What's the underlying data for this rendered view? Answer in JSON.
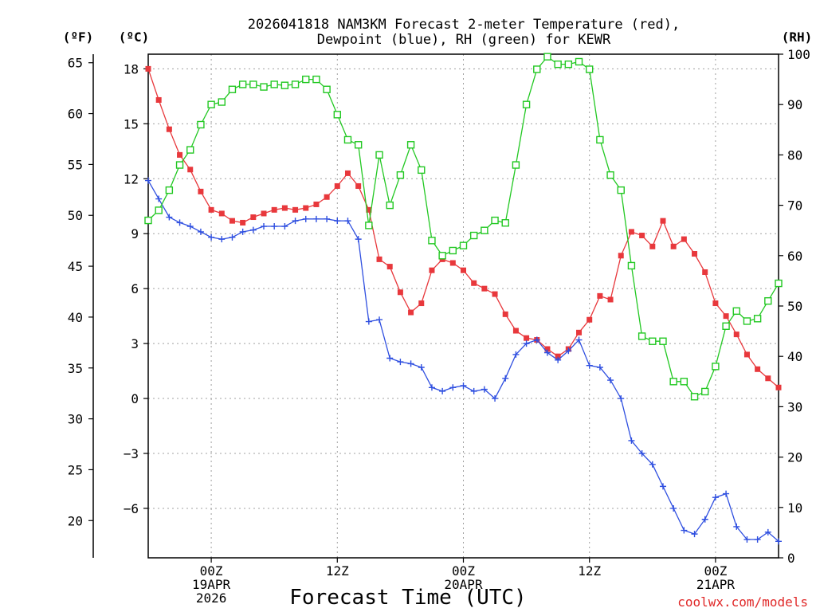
{
  "chart_data": {
    "type": "line",
    "title_line1": "2026041818 NAM3KM Forecast 2-meter Temperature (red),",
    "title_line2": "Dewpoint (blue), RH (green) for KEWR",
    "xlabel": "Forecast Time (UTC)",
    "credit": "coolwx.com/models",
    "left_f_label": "(ºF)",
    "left_c_label": "(ºC)",
    "right_label": "(RH)",
    "x_unit": "forecast hour",
    "xlim": [
      0,
      60
    ],
    "x_ticks": [
      {
        "x": 6,
        "lines": [
          "00Z",
          "19APR",
          "2026"
        ]
      },
      {
        "x": 18,
        "lines": [
          "12Z"
        ]
      },
      {
        "x": 30,
        "lines": [
          "00Z",
          "20APR"
        ]
      },
      {
        "x": 42,
        "lines": [
          "12Z"
        ]
      },
      {
        "x": 54,
        "lines": [
          "00Z",
          "21APR"
        ]
      }
    ],
    "y_c_range": [
      -8.7,
      18.8
    ],
    "y_c_ticks": [
      18,
      15,
      12,
      9,
      6,
      3,
      0,
      -3,
      -6
    ],
    "y_f_ticks": [
      65,
      60,
      55,
      50,
      45,
      40,
      35,
      30,
      25,
      20
    ],
    "y_rh_range": [
      0,
      100
    ],
    "y_rh_ticks": [
      100,
      90,
      80,
      70,
      60,
      50,
      40,
      30,
      20,
      10,
      0
    ],
    "colors": {
      "temperature": "#e8383c",
      "dewpoint": "#2f4fe0",
      "rh": "#22c822",
      "grid": "#a0a0a0",
      "credit": "#e02828"
    },
    "x": [
      0,
      1,
      2,
      3,
      4,
      5,
      6,
      7,
      8,
      9,
      10,
      11,
      12,
      13,
      14,
      15,
      16,
      17,
      18,
      19,
      20,
      21,
      22,
      23,
      24,
      25,
      26,
      27,
      28,
      29,
      30,
      31,
      32,
      33,
      34,
      35,
      36,
      37,
      38,
      39,
      40,
      41,
      42,
      43,
      44,
      45,
      46,
      47,
      48,
      49,
      50,
      51,
      52,
      53,
      54,
      55,
      56,
      57,
      58,
      59,
      60
    ],
    "series": [
      {
        "name": "Temperature",
        "axis": "celsius",
        "marker": "filled-square",
        "color": "#e8383c",
        "values": [
          18.0,
          16.3,
          14.7,
          13.3,
          12.5,
          11.3,
          10.3,
          10.1,
          9.7,
          9.6,
          9.9,
          10.1,
          10.3,
          10.4,
          10.3,
          10.4,
          10.6,
          11.0,
          11.6,
          12.3,
          11.6,
          10.3,
          7.6,
          7.2,
          5.8,
          4.7,
          5.2,
          7.0,
          7.6,
          7.4,
          7.0,
          6.3,
          6.0,
          5.7,
          4.6,
          3.7,
          3.3,
          3.2,
          2.7,
          2.3,
          2.7,
          3.6,
          4.3,
          5.6,
          5.4,
          7.8,
          9.1,
          8.9,
          8.3,
          9.7,
          8.3,
          8.7,
          7.9,
          6.9,
          5.2,
          4.5,
          3.5,
          2.4,
          1.6,
          1.1,
          0.6
        ]
      },
      {
        "name": "Dewpoint",
        "axis": "celsius",
        "marker": "plus",
        "color": "#2f4fe0",
        "values": [
          11.9,
          10.9,
          9.9,
          9.6,
          9.4,
          9.1,
          8.8,
          8.7,
          8.8,
          9.1,
          9.2,
          9.4,
          9.4,
          9.4,
          9.7,
          9.8,
          9.8,
          9.8,
          9.7,
          9.7,
          8.7,
          4.2,
          4.3,
          2.2,
          2.0,
          1.9,
          1.7,
          0.6,
          0.4,
          0.6,
          0.7,
          0.4,
          0.5,
          0.0,
          1.1,
          2.4,
          3.0,
          3.2,
          2.5,
          2.1,
          2.6,
          3.2,
          1.8,
          1.7,
          1.0,
          0.0,
          -2.3,
          -3.0,
          -3.6,
          -4.8,
          -6.0,
          -7.2,
          -7.4,
          -6.6,
          -5.4,
          -5.2,
          -7.0,
          -7.7,
          -7.7,
          -7.3,
          -7.8
        ]
      },
      {
        "name": "RH",
        "axis": "rh",
        "marker": "open-square",
        "color": "#22c822",
        "values": [
          67,
          69,
          73,
          78,
          81,
          86,
          90,
          90.5,
          93,
          94,
          94,
          93.5,
          94,
          93.8,
          94,
          95,
          95,
          93,
          88,
          83,
          82,
          66,
          80,
          70,
          76,
          82,
          77,
          63,
          60,
          61,
          62,
          64,
          65,
          67,
          66.5,
          78,
          90,
          97,
          99.5,
          98,
          98,
          98.5,
          97,
          83,
          76,
          73,
          58,
          44,
          43,
          43,
          35,
          35,
          32,
          33,
          38,
          46,
          49,
          47,
          47.5,
          51,
          54.5
        ]
      }
    ]
  }
}
